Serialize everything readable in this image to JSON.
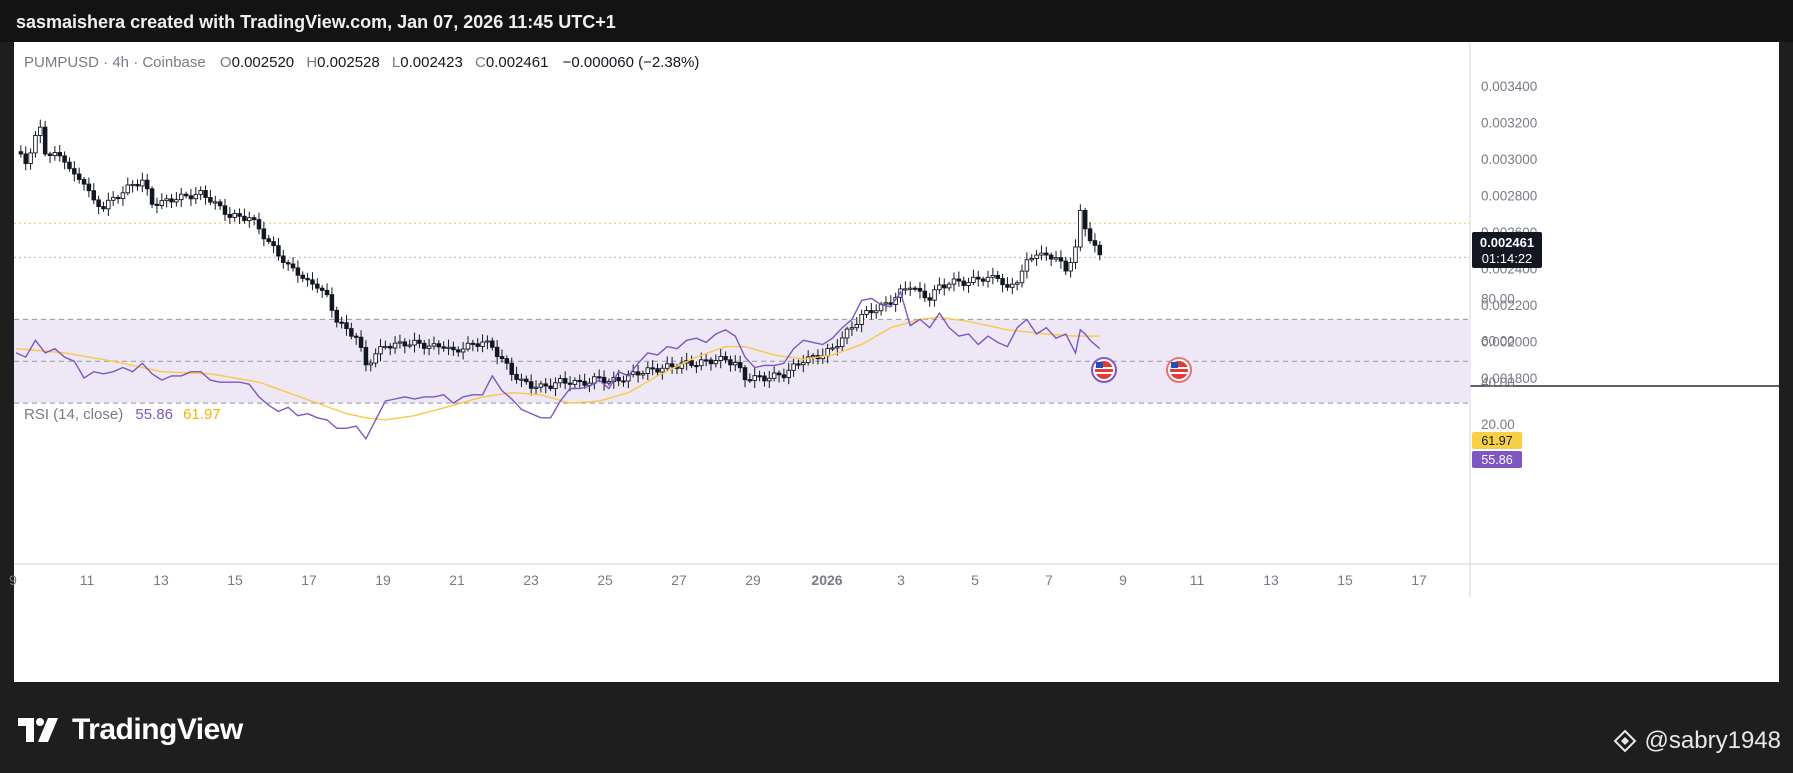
{
  "header": {
    "text": "sasmaishera created with TradingView.com, Jan 07, 2026 11:45 UTC+1"
  },
  "legend": {
    "symbol": "PUMPUSD · 4h · Coinbase",
    "o_label": "O",
    "o_value": "0.002520",
    "h_label": "H",
    "h_value": "0.002528",
    "l_label": "L",
    "l_value": "0.002423",
    "c_label": "C",
    "c_value": "0.002461",
    "change": "−0.000060 (−2.38%)"
  },
  "price_tag": {
    "price": "0.002461",
    "countdown": "01:14:22"
  },
  "rsi_legend": {
    "label": "RSI (14, close)",
    "rsi_value": "55.86",
    "ma_value": "61.97"
  },
  "rsi_tags": {
    "ma": "61.97",
    "rsi": "55.86"
  },
  "colors": {
    "candle": "#131722",
    "candle_up_fill": "#ffffff",
    "rsi_line": "#7e57c2",
    "rsi_ma": "#f7c948",
    "band_fill": "#ede7f6",
    "ma_tag": "#f7d046",
    "rsi_tag": "#7e57c2",
    "price_line": "#f2c14e"
  },
  "chart_data": {
    "type": "candlestick",
    "price_axis": {
      "ticks": [
        0.0018,
        0.002,
        0.0022,
        0.0024,
        0.0026,
        0.0028,
        0.003,
        0.0032,
        0.0034
      ],
      "labels": [
        "0.001800",
        "0.002000",
        "0.002200",
        "0.002400",
        "0.002600",
        "0.002800",
        "0.003000",
        "0.003200",
        "0.003400"
      ]
    },
    "rsi_axis": {
      "ticks": [
        20,
        40,
        60,
        80
      ],
      "labels": [
        "20.00",
        "40.00",
        "60.00",
        "80.00"
      ],
      "bands": [
        30,
        50,
        70
      ]
    },
    "x_axis": {
      "labels": [
        "9",
        "11",
        "13",
        "15",
        "17",
        "19",
        "21",
        "23",
        "25",
        "27",
        "29",
        "2026",
        "3",
        "5",
        "7",
        "9",
        "11",
        "13",
        "15",
        "17"
      ]
    },
    "price_anchors": [
      [
        0,
        0.00304
      ],
      [
        2,
        0.00298
      ],
      [
        4,
        0.00312
      ],
      [
        5,
        0.00316
      ],
      [
        6,
        0.00304
      ],
      [
        8,
        0.00302
      ],
      [
        10,
        0.003
      ],
      [
        12,
        0.0029
      ],
      [
        14,
        0.00288
      ],
      [
        16,
        0.00276
      ],
      [
        18,
        0.00274
      ],
      [
        20,
        0.00278
      ],
      [
        22,
        0.00282
      ],
      [
        24,
        0.00286
      ],
      [
        26,
        0.00288
      ],
      [
        28,
        0.00276
      ],
      [
        30,
        0.00276
      ],
      [
        32,
        0.00278
      ],
      [
        34,
        0.00279
      ],
      [
        36,
        0.0028
      ],
      [
        38,
        0.00281
      ],
      [
        40,
        0.00278
      ],
      [
        42,
        0.00273
      ],
      [
        44,
        0.00269
      ],
      [
        46,
        0.00268
      ],
      [
        48,
        0.00268
      ],
      [
        50,
        0.00262
      ],
      [
        52,
        0.00254
      ],
      [
        54,
        0.00248
      ],
      [
        56,
        0.00241
      ],
      [
        58,
        0.00238
      ],
      [
        60,
        0.00232
      ],
      [
        62,
        0.00231
      ],
      [
        64,
        0.00224
      ],
      [
        66,
        0.00212
      ],
      [
        68,
        0.00206
      ],
      [
        70,
        0.00203
      ],
      [
        72,
        0.00187
      ],
      [
        74,
        0.00193
      ],
      [
        76,
        0.00198
      ],
      [
        78,
        0.00198
      ],
      [
        80,
        0.00199
      ],
      [
        82,
        0.00199
      ],
      [
        84,
        0.00198
      ],
      [
        86,
        0.00197
      ],
      [
        88,
        0.00198
      ],
      [
        90,
        0.00194
      ],
      [
        92,
        0.00197
      ],
      [
        94,
        0.00198
      ],
      [
        96,
        0.002
      ],
      [
        98,
        0.00197
      ],
      [
        100,
        0.0019
      ],
      [
        102,
        0.00183
      ],
      [
        104,
        0.00178
      ],
      [
        106,
        0.00176
      ],
      [
        108,
        0.00175
      ],
      [
        110,
        0.00176
      ],
      [
        112,
        0.00178
      ],
      [
        114,
        0.00178
      ],
      [
        116,
        0.00177
      ],
      [
        118,
        0.00178
      ],
      [
        120,
        0.0018
      ],
      [
        122,
        0.00178
      ],
      [
        124,
        0.00179
      ],
      [
        126,
        0.00181
      ],
      [
        128,
        0.00183
      ],
      [
        130,
        0.00184
      ],
      [
        132,
        0.00185
      ],
      [
        134,
        0.00186
      ],
      [
        136,
        0.00187
      ],
      [
        138,
        0.00188
      ],
      [
        140,
        0.00188
      ],
      [
        142,
        0.00189
      ],
      [
        144,
        0.0019
      ],
      [
        146,
        0.0019
      ],
      [
        148,
        0.00188
      ],
      [
        150,
        0.0018
      ],
      [
        152,
        0.0018
      ],
      [
        154,
        0.0018
      ],
      [
        156,
        0.00181
      ],
      [
        158,
        0.00182
      ],
      [
        160,
        0.00186
      ],
      [
        162,
        0.0019
      ],
      [
        164,
        0.00191
      ],
      [
        166,
        0.00193
      ],
      [
        168,
        0.00196
      ],
      [
        170,
        0.00202
      ],
      [
        172,
        0.00208
      ],
      [
        174,
        0.00214
      ],
      [
        176,
        0.00217
      ],
      [
        178,
        0.00219
      ],
      [
        180,
        0.00222
      ],
      [
        182,
        0.00227
      ],
      [
        184,
        0.00231
      ],
      [
        186,
        0.00226
      ],
      [
        188,
        0.00224
      ],
      [
        190,
        0.0023
      ],
      [
        192,
        0.00232
      ],
      [
        194,
        0.00233
      ],
      [
        196,
        0.00232
      ],
      [
        198,
        0.00235
      ],
      [
        200,
        0.00234
      ],
      [
        202,
        0.00236
      ],
      [
        204,
        0.00228
      ],
      [
        206,
        0.00234
      ],
      [
        208,
        0.00243
      ],
      [
        210,
        0.00249
      ],
      [
        212,
        0.00246
      ],
      [
        214,
        0.00247
      ],
      [
        216,
        0.00238
      ],
      [
        218,
        0.00252
      ],
      [
        219,
        0.0027
      ],
      [
        220,
        0.00262
      ],
      [
        221,
        0.00257
      ],
      [
        222,
        0.00252
      ],
      [
        223,
        0.00246
      ]
    ],
    "rsi_anchors": [
      [
        0,
        54
      ],
      [
        2,
        52
      ],
      [
        4,
        60
      ],
      [
        6,
        54
      ],
      [
        8,
        56
      ],
      [
        10,
        52
      ],
      [
        12,
        50
      ],
      [
        14,
        42
      ],
      [
        16,
        45
      ],
      [
        18,
        44
      ],
      [
        20,
        45
      ],
      [
        22,
        47
      ],
      [
        24,
        45
      ],
      [
        26,
        49
      ],
      [
        28,
        44
      ],
      [
        30,
        41
      ],
      [
        32,
        43
      ],
      [
        34,
        43
      ],
      [
        36,
        45
      ],
      [
        38,
        45
      ],
      [
        40,
        41
      ],
      [
        42,
        40
      ],
      [
        44,
        40
      ],
      [
        46,
        40
      ],
      [
        48,
        39
      ],
      [
        50,
        33
      ],
      [
        52,
        29
      ],
      [
        54,
        26
      ],
      [
        56,
        28
      ],
      [
        58,
        24
      ],
      [
        60,
        25
      ],
      [
        62,
        23
      ],
      [
        64,
        22
      ],
      [
        66,
        18
      ],
      [
        68,
        18
      ],
      [
        70,
        19
      ],
      [
        72,
        13
      ],
      [
        74,
        22
      ],
      [
        76,
        31
      ],
      [
        78,
        32
      ],
      [
        80,
        33
      ],
      [
        82,
        32
      ],
      [
        84,
        33
      ],
      [
        86,
        33
      ],
      [
        88,
        34
      ],
      [
        90,
        30
      ],
      [
        92,
        33
      ],
      [
        94,
        34
      ],
      [
        96,
        34
      ],
      [
        98,
        43
      ],
      [
        100,
        36
      ],
      [
        102,
        32
      ],
      [
        104,
        27
      ],
      [
        106,
        25
      ],
      [
        108,
        23
      ],
      [
        110,
        23
      ],
      [
        112,
        31
      ],
      [
        114,
        37
      ],
      [
        116,
        37
      ],
      [
        118,
        38
      ],
      [
        120,
        41
      ],
      [
        122,
        37
      ],
      [
        124,
        45
      ],
      [
        126,
        43
      ],
      [
        128,
        49
      ],
      [
        130,
        54
      ],
      [
        132,
        53
      ],
      [
        134,
        57
      ],
      [
        136,
        56
      ],
      [
        138,
        60
      ],
      [
        140,
        61
      ],
      [
        142,
        59
      ],
      [
        144,
        63
      ],
      [
        146,
        65
      ],
      [
        148,
        62
      ],
      [
        150,
        52
      ],
      [
        152,
        47
      ],
      [
        154,
        48
      ],
      [
        156,
        48
      ],
      [
        158,
        49
      ],
      [
        160,
        56
      ],
      [
        162,
        60
      ],
      [
        164,
        59
      ],
      [
        166,
        58
      ],
      [
        168,
        61
      ],
      [
        170,
        66
      ],
      [
        172,
        70
      ],
      [
        174,
        79
      ],
      [
        176,
        80
      ],
      [
        178,
        77
      ],
      [
        180,
        76
      ],
      [
        182,
        83
      ],
      [
        184,
        67
      ],
      [
        186,
        70
      ],
      [
        188,
        66
      ],
      [
        190,
        73
      ],
      [
        192,
        66
      ],
      [
        194,
        62
      ],
      [
        196,
        63
      ],
      [
        198,
        58
      ],
      [
        200,
        62
      ],
      [
        202,
        59
      ],
      [
        204,
        57
      ],
      [
        206,
        66
      ],
      [
        208,
        70
      ],
      [
        210,
        63
      ],
      [
        212,
        66
      ],
      [
        214,
        61
      ],
      [
        216,
        63
      ],
      [
        218,
        54
      ],
      [
        219,
        65
      ],
      [
        220,
        63
      ],
      [
        221,
        60
      ],
      [
        222,
        58
      ],
      [
        223,
        56
      ]
    ],
    "rsi_ma_anchors": [
      [
        0,
        56
      ],
      [
        10,
        54
      ],
      [
        20,
        50
      ],
      [
        30,
        45
      ],
      [
        40,
        44
      ],
      [
        50,
        40
      ],
      [
        56,
        35
      ],
      [
        62,
        30
      ],
      [
        68,
        25
      ],
      [
        72,
        23
      ],
      [
        76,
        22
      ],
      [
        82,
        24
      ],
      [
        90,
        29
      ],
      [
        96,
        33
      ],
      [
        102,
        35
      ],
      [
        108,
        34
      ],
      [
        114,
        30
      ],
      [
        120,
        31
      ],
      [
        126,
        35
      ],
      [
        132,
        43
      ],
      [
        140,
        52
      ],
      [
        146,
        57
      ],
      [
        150,
        57
      ],
      [
        156,
        53
      ],
      [
        162,
        51
      ],
      [
        168,
        53
      ],
      [
        174,
        58
      ],
      [
        180,
        66
      ],
      [
        186,
        70
      ],
      [
        190,
        71
      ],
      [
        196,
        69
      ],
      [
        204,
        65
      ],
      [
        212,
        63
      ],
      [
        218,
        62
      ],
      [
        223,
        62
      ]
    ]
  },
  "footer": {
    "brand": "TradingView",
    "watermark": "@sabry1948"
  }
}
